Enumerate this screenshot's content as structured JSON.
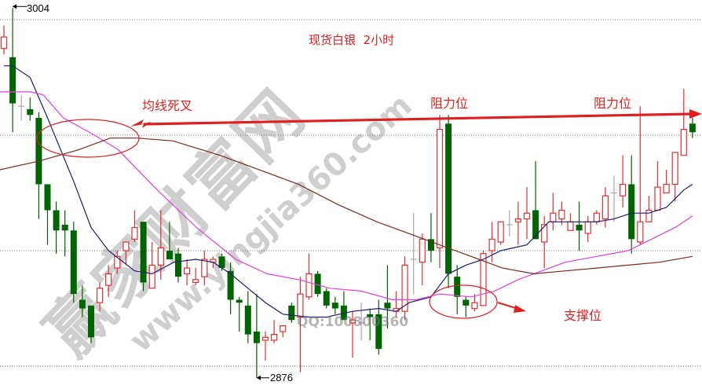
{
  "chart_data": {
    "type": "candlestick",
    "title": "现货白银  2小时",
    "ylim": [
      2872,
      3010
    ],
    "grid": true,
    "gridlines": [
      3000,
      2960,
      2920,
      2880
    ],
    "high_label": "3004",
    "low_label": "2876",
    "high_index": 1,
    "low_index": 29,
    "colors": {
      "up": "#e03030",
      "down": "#006400",
      "doji": "#a8a8a8",
      "ma_short": "#1c1c6e",
      "ma_mid": "#e040e0",
      "ma_long": "#7a2a20",
      "annotation": "#e02020"
    },
    "candles": [
      [
        2990,
        2998,
        2988,
        2994
      ],
      [
        2987,
        3004,
        2961,
        2971
      ],
      [
        2970,
        2974,
        2965,
        2970
      ],
      [
        2969,
        2973,
        2965,
        2967
      ],
      [
        2966,
        2968,
        2931,
        2943
      ],
      [
        2943,
        2943,
        2922,
        2934
      ],
      [
        2934,
        2937,
        2919,
        2927
      ],
      [
        2929,
        2934,
        2918,
        2927
      ],
      [
        2927,
        2930,
        2902,
        2905
      ],
      [
        2903,
        2908,
        2897,
        2900
      ],
      [
        2901,
        2901,
        2888,
        2890
      ],
      [
        2902,
        2909,
        2899,
        2907
      ],
      [
        2908,
        2915,
        2904,
        2912
      ],
      [
        2914,
        2920,
        2912,
        2918
      ],
      [
        2920,
        2923,
        2915,
        2923
      ],
      [
        2924,
        2934,
        2923,
        2928
      ],
      [
        2930,
        2930,
        2906,
        2909
      ],
      [
        2907,
        2923,
        2907,
        2915
      ],
      [
        2915,
        2934,
        2910,
        2921
      ],
      [
        2920,
        2930,
        2917,
        2917
      ],
      [
        2919,
        2921,
        2909,
        2911
      ],
      [
        2912,
        2917,
        2908,
        2914
      ],
      [
        2909,
        2914,
        2908,
        2910
      ],
      [
        2911,
        2920,
        2908,
        2917
      ],
      [
        2916,
        2918,
        2914,
        2917
      ],
      [
        2918,
        2919,
        2913,
        2914
      ],
      [
        2913,
        2916,
        2898,
        2903
      ],
      [
        2903,
        2904,
        2892,
        2902
      ],
      [
        2901,
        2906,
        2888,
        2891
      ],
      [
        2892,
        2905,
        2876,
        2888
      ],
      [
        2889,
        2892,
        2882,
        2890
      ],
      [
        2889,
        2896,
        2888,
        2891
      ],
      [
        2892,
        2894,
        2890,
        2894
      ],
      [
        2901,
        2902,
        2895,
        2896
      ],
      [
        2897,
        2911,
        2878,
        2905
      ],
      [
        2904,
        2919,
        2903,
        2912
      ],
      [
        2912,
        2913,
        2904,
        2905
      ],
      [
        2906,
        2907,
        2900,
        2901
      ],
      [
        2902,
        2904,
        2898,
        2900
      ],
      [
        2901,
        2906,
        2896,
        2896
      ],
      [
        2895,
        2899,
        2883,
        2896
      ],
      [
        2895,
        2902,
        2889,
        2895
      ],
      [
        2898,
        2900,
        2889,
        2897
      ],
      [
        2898,
        2903,
        2884,
        2886
      ],
      [
        2902,
        2915,
        2893,
        2900
      ],
      [
        2899,
        2906,
        2897,
        2900
      ],
      [
        2899,
        2918,
        2896,
        2915
      ],
      [
        2917,
        2933,
        2905,
        2917
      ],
      [
        2916,
        2926,
        2908,
        2924
      ],
      [
        2924,
        2933,
        2916,
        2920
      ],
      [
        2921,
        2967,
        2914,
        2962
      ],
      [
        2964,
        2967,
        2907,
        2912
      ],
      [
        2911,
        2915,
        2898,
        2904
      ],
      [
        2903,
        2904,
        2897,
        2901
      ],
      [
        2900,
        2905,
        2899,
        2902
      ],
      [
        2901,
        2920,
        2901,
        2919
      ],
      [
        2920,
        2930,
        2916,
        2924
      ],
      [
        2923,
        2930,
        2922,
        2930
      ],
      [
        2929,
        2934,
        2925,
        2929
      ],
      [
        2930,
        2937,
        2922,
        2931
      ],
      [
        2931,
        2942,
        2924,
        2933
      ],
      [
        2934,
        2951,
        2924,
        2924
      ],
      [
        2923,
        2932,
        2914,
        2929
      ],
      [
        2930,
        2940,
        2927,
        2933
      ],
      [
        2931,
        2937,
        2929,
        2934
      ],
      [
        2927,
        2933,
        2927,
        2930
      ],
      [
        2929,
        2937,
        2920,
        2927
      ],
      [
        2926,
        2932,
        2923,
        2930
      ],
      [
        2930,
        2934,
        2929,
        2933
      ],
      [
        2931,
        2942,
        2928,
        2939
      ],
      [
        2940,
        2946,
        2930,
        2940
      ],
      [
        2939,
        2953,
        2935,
        2943
      ],
      [
        2943,
        2953,
        2919,
        2924
      ],
      [
        2923,
        2970,
        2922,
        2930
      ],
      [
        2930,
        2939,
        2930,
        2934
      ],
      [
        2934,
        2951,
        2934,
        2942
      ],
      [
        2940,
        2948,
        2940,
        2943
      ],
      [
        2943,
        2954,
        2937,
        2954
      ],
      [
        2953,
        2976,
        2953,
        2962
      ],
      [
        2964,
        2966,
        2959,
        2961
      ]
    ],
    "candle_fields": [
      "open",
      "high",
      "low",
      "close"
    ],
    "moving_averages": [
      {
        "key": "ma_short",
        "points": [
          [
            0,
            2984
          ],
          [
            1,
            2984
          ],
          [
            3,
            2980
          ],
          [
            5,
            2966
          ],
          [
            8,
            2944
          ],
          [
            10,
            2928
          ],
          [
            12,
            2920
          ],
          [
            15,
            2913
          ],
          [
            17,
            2912
          ],
          [
            19.5,
            2916
          ],
          [
            22,
            2917
          ],
          [
            24,
            2916
          ],
          [
            26,
            2912
          ],
          [
            28,
            2907
          ],
          [
            30,
            2902
          ],
          [
            32,
            2898
          ],
          [
            35,
            2897
          ],
          [
            37,
            2897
          ],
          [
            40,
            2899
          ],
          [
            43,
            2900
          ],
          [
            45,
            2899
          ],
          [
            46.5,
            2902
          ],
          [
            49,
            2904
          ],
          [
            51,
            2912
          ],
          [
            53,
            2915
          ],
          [
            55,
            2917
          ],
          [
            57,
            2920
          ],
          [
            60,
            2922
          ],
          [
            62.5,
            2930
          ],
          [
            65,
            2930
          ],
          [
            68,
            2930
          ],
          [
            70,
            2931
          ],
          [
            72,
            2933
          ],
          [
            74,
            2933
          ],
          [
            76,
            2935
          ],
          [
            78,
            2941
          ],
          [
            79,
            2943
          ]
        ]
      },
      {
        "key": "ma_mid",
        "points": [
          [
            -0.5,
            2975
          ],
          [
            3,
            2975
          ],
          [
            4.5,
            2974
          ],
          [
            6.8,
            2966
          ],
          [
            10.4,
            2960
          ],
          [
            13.1,
            2955
          ],
          [
            17.6,
            2941
          ],
          [
            22.1,
            2928
          ],
          [
            26.6,
            2917
          ],
          [
            30.2,
            2912
          ],
          [
            33.8,
            2910
          ],
          [
            37.4,
            2907
          ],
          [
            41,
            2906
          ],
          [
            44.6,
            2903
          ],
          [
            47.3,
            2903
          ],
          [
            50,
            2905
          ],
          [
            53.6,
            2904
          ],
          [
            56.3,
            2906
          ],
          [
            59,
            2910
          ],
          [
            61.7,
            2913
          ],
          [
            64.4,
            2916
          ],
          [
            68,
            2918
          ],
          [
            71.6,
            2920
          ],
          [
            74.3,
            2924
          ],
          [
            77,
            2928
          ],
          [
            79,
            2932
          ]
        ]
      },
      {
        "key": "ma_long",
        "points": [
          [
            -0.5,
            2948
          ],
          [
            4,
            2951
          ],
          [
            8.6,
            2955
          ],
          [
            12.2,
            2959
          ],
          [
            15.3,
            2959
          ],
          [
            19.4,
            2958
          ],
          [
            24.8,
            2953
          ],
          [
            29.3,
            2948
          ],
          [
            33.8,
            2943
          ],
          [
            38.3,
            2936
          ],
          [
            42.8,
            2930
          ],
          [
            47.3,
            2925
          ],
          [
            50.9,
            2921
          ],
          [
            53.6,
            2918
          ],
          [
            57.2,
            2914
          ],
          [
            60.8,
            2912
          ],
          [
            64.4,
            2913
          ],
          [
            68,
            2914
          ],
          [
            71.6,
            2915
          ],
          [
            75.2,
            2916
          ],
          [
            79,
            2918
          ]
        ]
      }
    ],
    "annotations": {
      "death_cross": "均线死叉",
      "resistance_1": "阻力位",
      "resistance_2": "阻力位",
      "support": "支撑位"
    }
  },
  "watermark": {
    "brand": "赢家财富网",
    "site": "www.yingjia360.com",
    "qq": "QQ:100800360"
  }
}
